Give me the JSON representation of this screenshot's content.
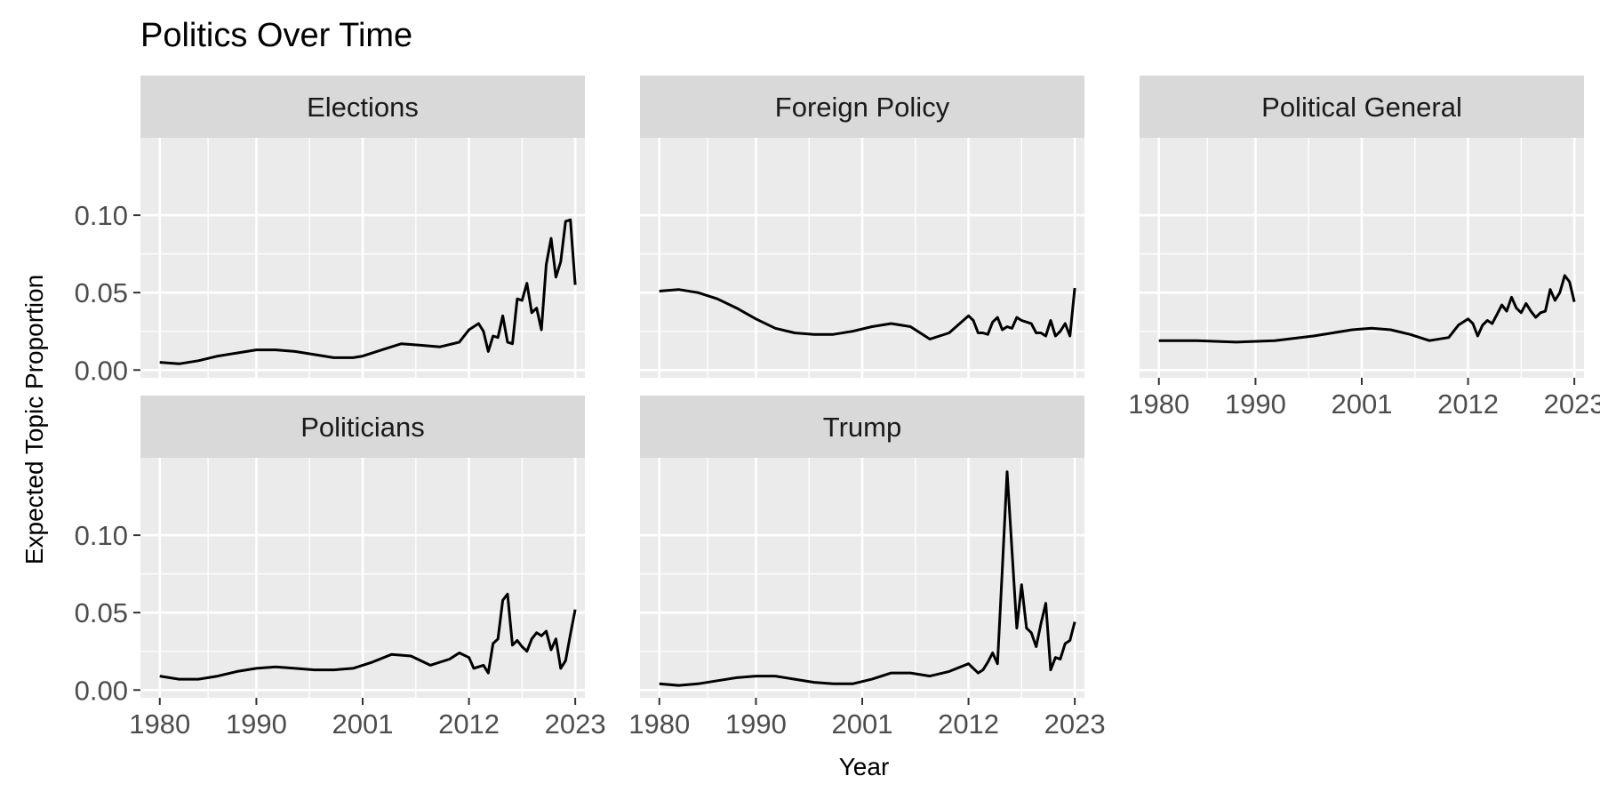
{
  "chart_data": {
    "type": "line",
    "title": "Politics Over Time",
    "xlabel": "Year",
    "ylabel": "Expected Topic Proportion",
    "x_ticks": [
      1980,
      1990,
      2001,
      2012,
      2023
    ],
    "y_ticks": [
      "0.00",
      "0.05",
      "0.10"
    ],
    "xlim": [
      1978,
      2024
    ],
    "ylim": [
      -0.005,
      0.15
    ],
    "grid": true,
    "line_color": "#000000",
    "panel_background": "#ebebeb",
    "strip_background": "#d9d9d9",
    "facets": [
      {
        "name": "Elections",
        "x": [
          1980,
          1982,
          1984,
          1986,
          1988,
          1990,
          1992,
          1994,
          1996,
          1998,
          2000,
          2001,
          2003,
          2005,
          2007,
          2009,
          2011,
          2012,
          2013,
          2013.5,
          2014,
          2014.5,
          2015,
          2015.5,
          2016,
          2016.5,
          2017,
          2017.5,
          2018,
          2018.5,
          2019,
          2019.5,
          2020,
          2020.5,
          2021,
          2021.5,
          2022,
          2022.5,
          2023
        ],
        "y": [
          0.005,
          0.004,
          0.006,
          0.009,
          0.011,
          0.013,
          0.013,
          0.012,
          0.01,
          0.008,
          0.008,
          0.009,
          0.013,
          0.017,
          0.016,
          0.015,
          0.018,
          0.026,
          0.03,
          0.025,
          0.012,
          0.022,
          0.021,
          0.035,
          0.018,
          0.017,
          0.046,
          0.045,
          0.056,
          0.037,
          0.04,
          0.026,
          0.068,
          0.085,
          0.06,
          0.07,
          0.096,
          0.097,
          0.055
        ]
      },
      {
        "name": "Foreign Policy",
        "x": [
          1980,
          1982,
          1984,
          1986,
          1988,
          1990,
          1992,
          1994,
          1996,
          1998,
          2000,
          2002,
          2004,
          2006,
          2008,
          2010,
          2012,
          2012.5,
          2013,
          2013.5,
          2014,
          2014.5,
          2015,
          2015.5,
          2016,
          2016.5,
          2017,
          2017.5,
          2018,
          2018.5,
          2019,
          2019.5,
          2020,
          2020.5,
          2021,
          2021.5,
          2022,
          2022.5,
          2023
        ],
        "y": [
          0.051,
          0.052,
          0.05,
          0.046,
          0.04,
          0.033,
          0.027,
          0.024,
          0.023,
          0.023,
          0.025,
          0.028,
          0.03,
          0.028,
          0.02,
          0.024,
          0.035,
          0.032,
          0.024,
          0.024,
          0.023,
          0.031,
          0.034,
          0.026,
          0.028,
          0.027,
          0.034,
          0.032,
          0.031,
          0.03,
          0.024,
          0.024,
          0.022,
          0.032,
          0.022,
          0.025,
          0.03,
          0.022,
          0.053
        ]
      },
      {
        "name": "Political General",
        "x": [
          1980,
          1984,
          1988,
          1992,
          1996,
          2000,
          2002,
          2004,
          2006,
          2008,
          2010,
          2011,
          2012,
          2012.5,
          2013,
          2013.5,
          2014,
          2014.5,
          2015,
          2015.5,
          2016,
          2016.5,
          2017,
          2017.5,
          2018,
          2018.5,
          2019,
          2019.5,
          2020,
          2020.5,
          2021,
          2021.5,
          2022,
          2022.5,
          2023
        ],
        "y": [
          0.019,
          0.019,
          0.018,
          0.019,
          0.022,
          0.026,
          0.027,
          0.026,
          0.023,
          0.019,
          0.021,
          0.029,
          0.033,
          0.03,
          0.022,
          0.029,
          0.032,
          0.03,
          0.036,
          0.042,
          0.038,
          0.047,
          0.04,
          0.037,
          0.043,
          0.038,
          0.034,
          0.037,
          0.038,
          0.052,
          0.045,
          0.05,
          0.061,
          0.057,
          0.044
        ]
      },
      {
        "name": "Politicians",
        "x": [
          1980,
          1982,
          1984,
          1986,
          1988,
          1990,
          1992,
          1994,
          1996,
          1998,
          2000,
          2002,
          2004,
          2006,
          2008,
          2010,
          2011,
          2012,
          2012.5,
          2013,
          2013.5,
          2014,
          2014.5,
          2015,
          2015.5,
          2016,
          2016.5,
          2017,
          2017.5,
          2018,
          2018.5,
          2019,
          2019.5,
          2020,
          2020.5,
          2021,
          2021.5,
          2022,
          2022.5,
          2023
        ],
        "y": [
          0.009,
          0.007,
          0.007,
          0.009,
          0.012,
          0.014,
          0.015,
          0.014,
          0.013,
          0.013,
          0.014,
          0.018,
          0.023,
          0.022,
          0.016,
          0.02,
          0.024,
          0.021,
          0.014,
          0.015,
          0.016,
          0.011,
          0.03,
          0.033,
          0.058,
          0.062,
          0.029,
          0.032,
          0.028,
          0.025,
          0.033,
          0.037,
          0.035,
          0.038,
          0.026,
          0.033,
          0.014,
          0.019,
          0.036,
          0.052
        ]
      },
      {
        "name": "Trump",
        "x": [
          1980,
          1982,
          1984,
          1986,
          1988,
          1990,
          1992,
          1994,
          1996,
          1998,
          2000,
          2002,
          2004,
          2006,
          2008,
          2010,
          2012,
          2012.5,
          2013,
          2013.5,
          2014,
          2014.5,
          2015,
          2015.5,
          2016,
          2016.5,
          2017,
          2017.5,
          2018,
          2018.5,
          2019,
          2019.5,
          2020,
          2020.5,
          2021,
          2021.5,
          2022,
          2022.5,
          2023
        ],
        "y": [
          0.004,
          0.003,
          0.004,
          0.006,
          0.008,
          0.009,
          0.009,
          0.007,
          0.005,
          0.004,
          0.004,
          0.007,
          0.011,
          0.011,
          0.009,
          0.012,
          0.017,
          0.014,
          0.011,
          0.013,
          0.018,
          0.024,
          0.017,
          0.078,
          0.141,
          0.09,
          0.04,
          0.068,
          0.04,
          0.037,
          0.028,
          0.043,
          0.056,
          0.013,
          0.021,
          0.02,
          0.03,
          0.032,
          0.044
        ]
      }
    ]
  }
}
